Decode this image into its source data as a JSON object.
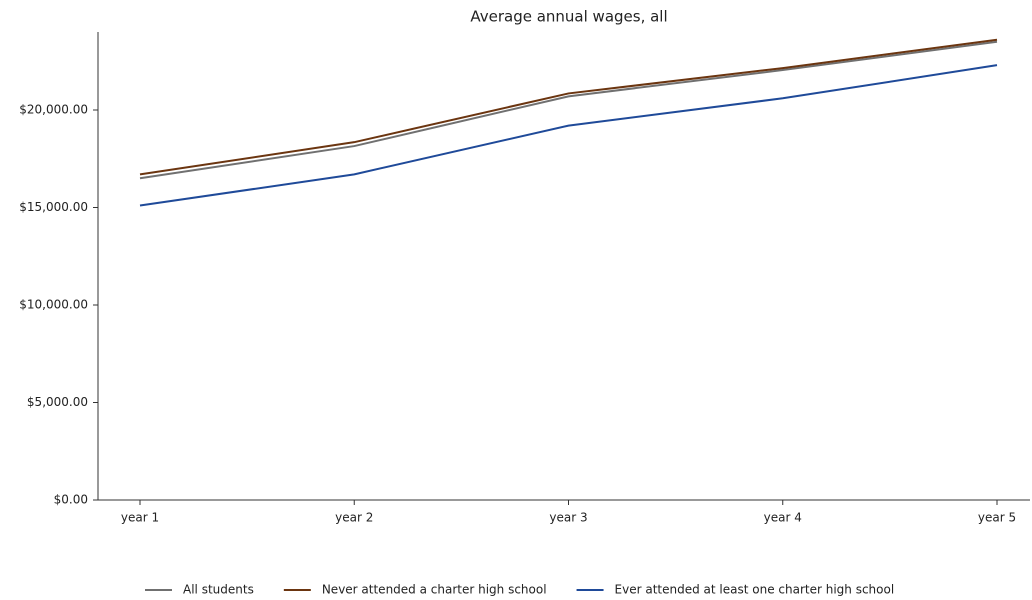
{
  "chart_data": {
    "type": "line",
    "title": "Average annual wages, all",
    "categories": [
      "year 1",
      "year 2",
      "year 3",
      "year 4",
      "year 5"
    ],
    "series": [
      {
        "name": "All students",
        "color": "#707070",
        "values": [
          16500,
          18150,
          20700,
          22050,
          23500
        ]
      },
      {
        "name": "Never attended a charter high school",
        "color": "#6b3510",
        "values": [
          16700,
          18350,
          20850,
          22150,
          23600
        ]
      },
      {
        "name": "Ever attended at least one charter high school",
        "color": "#1f4a99",
        "values": [
          15100,
          16700,
          19200,
          20600,
          22300
        ]
      }
    ],
    "ylim": [
      0,
      24000
    ],
    "yticks": [
      {
        "value": 0,
        "label": "$0.00"
      },
      {
        "value": 5000,
        "label": "$5,000.00"
      },
      {
        "value": 10000,
        "label": "$10,000.00"
      },
      {
        "value": 15000,
        "label": "$15,000.00"
      },
      {
        "value": 20000,
        "label": "$20,000.00"
      }
    ],
    "grid": false,
    "legend": "bottom"
  }
}
